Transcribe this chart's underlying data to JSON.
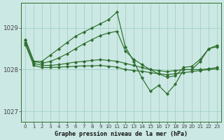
{
  "title": "Graphe pression niveau de la mer (hPa)",
  "bg_color": "#cce8e4",
  "grid_color": "#99ccbb",
  "line_color": "#2d6e2d",
  "ylim": [
    1026.75,
    1029.6
  ],
  "yticks": [
    1027,
    1028,
    1029
  ],
  "hours": [
    0,
    1,
    2,
    3,
    4,
    5,
    6,
    7,
    8,
    9,
    10,
    11,
    12,
    13,
    14,
    15,
    16,
    17,
    18,
    19,
    20,
    21,
    22,
    23
  ],
  "series": [
    [
      1028.72,
      1028.2,
      1028.2,
      1028.35,
      1028.5,
      1028.65,
      1028.8,
      1028.9,
      1029.0,
      1029.1,
      1029.2,
      1029.38,
      1028.55,
      1028.2,
      1027.8,
      1027.48,
      1027.62,
      1027.42,
      1027.65,
      1028.0,
      1028.0,
      1028.2,
      1028.5,
      1028.55
    ],
    [
      1028.72,
      1028.2,
      1028.15,
      1028.2,
      1028.28,
      1028.38,
      1028.5,
      1028.62,
      1028.72,
      1028.82,
      1028.88,
      1028.92,
      1028.45,
      1028.25,
      1028.12,
      1028.0,
      1027.9,
      1027.82,
      1027.85,
      1028.05,
      1028.08,
      1028.25,
      1028.5,
      1028.58
    ],
    [
      1028.65,
      1028.15,
      1028.1,
      1028.1,
      1028.12,
      1028.15,
      1028.18,
      1028.2,
      1028.22,
      1028.24,
      1028.22,
      1028.2,
      1028.15,
      1028.1,
      1028.05,
      1028.0,
      1027.98,
      1027.95,
      1027.98,
      1028.0,
      1028.0,
      1028.0,
      1028.02,
      1028.05
    ],
    [
      1028.6,
      1028.1,
      1028.05,
      1028.05,
      1028.06,
      1028.07,
      1028.08,
      1028.09,
      1028.09,
      1028.1,
      1028.08,
      1028.06,
      1028.0,
      1027.98,
      1027.96,
      1027.93,
      1027.9,
      1027.88,
      1027.9,
      1027.93,
      1027.95,
      1027.98,
      1028.0,
      1028.02
    ]
  ]
}
